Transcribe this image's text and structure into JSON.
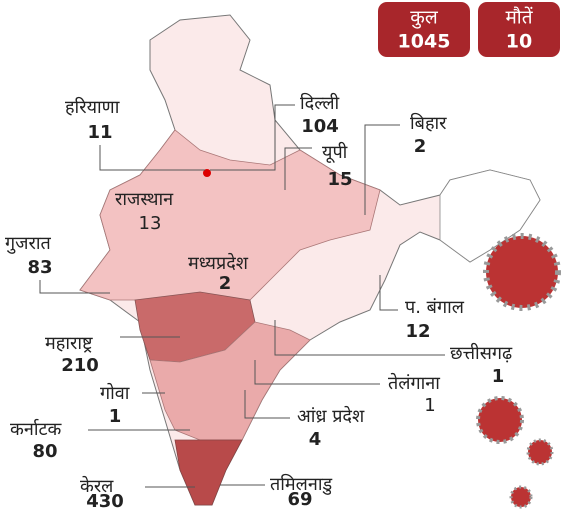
{
  "totals": [
    {
      "label": "कुल",
      "value": 1045
    },
    {
      "label": "मौतें",
      "value": 10
    }
  ],
  "states": [
    {
      "name": "हरियाणा",
      "value": 11
    },
    {
      "name": "दिल्ली",
      "value": 104
    },
    {
      "name": "बिहार",
      "value": 2
    },
    {
      "name": "यूपी",
      "value": 15
    },
    {
      "name": "राजस्थान",
      "value": 13
    },
    {
      "name": "गुजरात",
      "value": 83
    },
    {
      "name": "मध्यप्रदेश",
      "value": 2
    },
    {
      "name": "प. बंगाल",
      "value": 12
    },
    {
      "name": "महाराष्ट्र",
      "value": 210
    },
    {
      "name": "छत्तीसगढ़",
      "value": 1
    },
    {
      "name": "गोवा",
      "value": 1
    },
    {
      "name": "तेलंगाना",
      "value": 1
    },
    {
      "name": "कर्नाटक",
      "value": 80
    },
    {
      "name": "आंध्र प्रदेश",
      "value": 4
    },
    {
      "name": "केरल",
      "value": 430
    },
    {
      "name": "तमिलनाडु",
      "value": 69
    }
  ]
}
